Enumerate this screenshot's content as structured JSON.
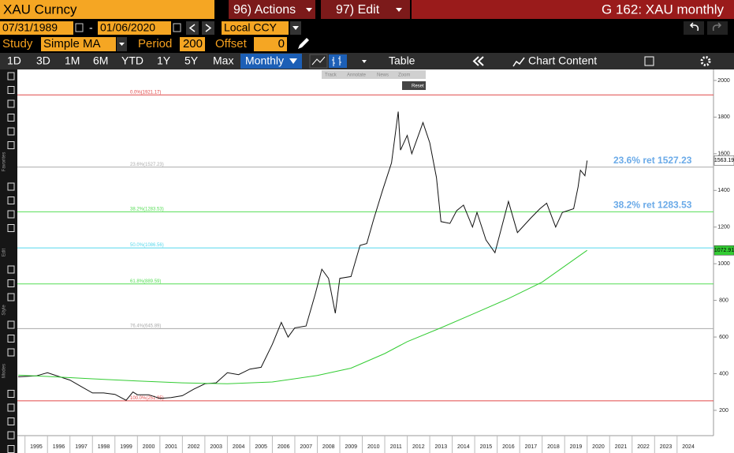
{
  "header": {
    "security": "XAU Curncy",
    "actions": "96) Actions",
    "edit": "97) Edit",
    "title": "G 162: XAU monthly"
  },
  "controls": {
    "start_date": "07/31/1989",
    "separator": "-",
    "end_date": "01/06/2020",
    "currency": "Local CCY",
    "study_label": "Study",
    "study": "Simple MA",
    "period_label": "Period",
    "period": 200,
    "offset_label": "Offset",
    "offset": 0
  },
  "toolbar": {
    "ranges": [
      "1D",
      "3D",
      "1M",
      "6M",
      "YTD",
      "1Y",
      "5Y",
      "Max"
    ],
    "frequency": "Monthly",
    "table": "Table",
    "chart_content": "Chart Content"
  },
  "sidebar": {
    "labels": [
      "Favorites",
      "Edit",
      "Style",
      "Modes"
    ]
  },
  "chart_tools": {
    "buttons": [
      "Track",
      "Annotate",
      "News",
      "Zoom"
    ],
    "reset": "Reset"
  },
  "chart_data": {
    "type": "line",
    "series": [
      {
        "color": "#111111",
        "x": [
          1994.7,
          1995,
          1995.5,
          1996,
          1996.5,
          1997,
          1997.5,
          1998,
          1998.5,
          1999,
          1999.5,
          1999.8,
          2000,
          2000.5,
          2001,
          2001.5,
          2002,
          2002.5,
          2003,
          2003.5,
          2004,
          2004.5,
          2005,
          2005.5,
          2006,
          2006.4,
          2006.7,
          2007,
          2007.5,
          2007.9,
          2008.2,
          2008.5,
          2008.8,
          2009,
          2009.5,
          2009.9,
          2010.2,
          2010.5,
          2010.9,
          2011.3,
          2011.6,
          2011.7,
          2012,
          2012.2,
          2012.7,
          2013,
          2013.3,
          2013.5,
          2013.9,
          2014.2,
          2014.5,
          2014.9,
          2015.1,
          2015.5,
          2015.9,
          2016.5,
          2016.9,
          2017.5,
          2017.9,
          2018.2,
          2018.6,
          2018.9,
          2019.4,
          2019.6,
          2019.7,
          2019.9,
          2020.0
        ],
        "values": [
          383,
          385,
          388,
          405,
          385,
          365,
          330,
          295,
          295,
          287,
          255,
          300,
          285,
          285,
          265,
          270,
          280,
          315,
          345,
          350,
          405,
          395,
          425,
          435,
          560,
          680,
          600,
          650,
          660,
          830,
          970,
          920,
          730,
          920,
          930,
          1100,
          1110,
          1240,
          1400,
          1550,
          1830,
          1620,
          1700,
          1600,
          1770,
          1660,
          1470,
          1230,
          1220,
          1290,
          1320,
          1200,
          1280,
          1130,
          1060,
          1340,
          1170,
          1250,
          1300,
          1330,
          1200,
          1280,
          1300,
          1420,
          1510,
          1480,
          1563.19
        ]
      },
      {
        "color": "#33cc33",
        "x": [
          1994.7,
          1996,
          1998,
          2000,
          2002,
          2004,
          2006,
          2008,
          2009.5,
          2011,
          2012,
          2013.5,
          2015,
          2016.5,
          2018,
          2019.5,
          2020.0
        ],
        "values": [
          392,
          385,
          372,
          360,
          350,
          345,
          355,
          390,
          430,
          510,
          575,
          650,
          730,
          810,
          900,
          1030,
          1072.91
        ]
      }
    ],
    "levels": [
      {
        "label": "0.0%(1921.17)",
        "value": 1921.17,
        "color": "#e04848"
      },
      {
        "label": "23.6%(1527.23)",
        "value": 1527.23,
        "color": "#aaaaaa"
      },
      {
        "label": "38.2%(1283.53)",
        "value": 1283.53,
        "color": "#55dd55"
      },
      {
        "label": "50.0%(1086.56)",
        "value": 1086.56,
        "color": "#55d8ec"
      },
      {
        "label": "61.8%(889.59)",
        "value": 889.59,
        "color": "#55dd55"
      },
      {
        "label": "76.4%(645.89)",
        "value": 645.89,
        "color": "#aaaaaa"
      },
      {
        "label": "100.0%(251.95)",
        "value": 251.95,
        "color": "#e04848"
      }
    ],
    "annotations": [
      {
        "text": "23.6% ret 1527.23",
        "value": 1527.23
      },
      {
        "text": "38.2% ret 1283.53",
        "value": 1283.53
      }
    ],
    "annotation_color": "#6aaae8",
    "price_tag": 1563.19,
    "ma_tag": 1072.91,
    "xlim": [
      1994.66,
      2025.62
    ],
    "xticks": [
      1995,
      1996,
      1997,
      1998,
      1999,
      2000,
      2001,
      2002,
      2003,
      2004,
      2005,
      2006,
      2007,
      2008,
      2009,
      2010,
      2011,
      2012,
      2013,
      2014,
      2015,
      2016,
      2017,
      2018,
      2019,
      2020,
      2021,
      2022,
      2023,
      2024
    ],
    "ylim": [
      62,
      2060
    ],
    "yticks": [
      200,
      400,
      600,
      800,
      1000,
      1200,
      1400,
      1600,
      1800,
      2000
    ]
  }
}
